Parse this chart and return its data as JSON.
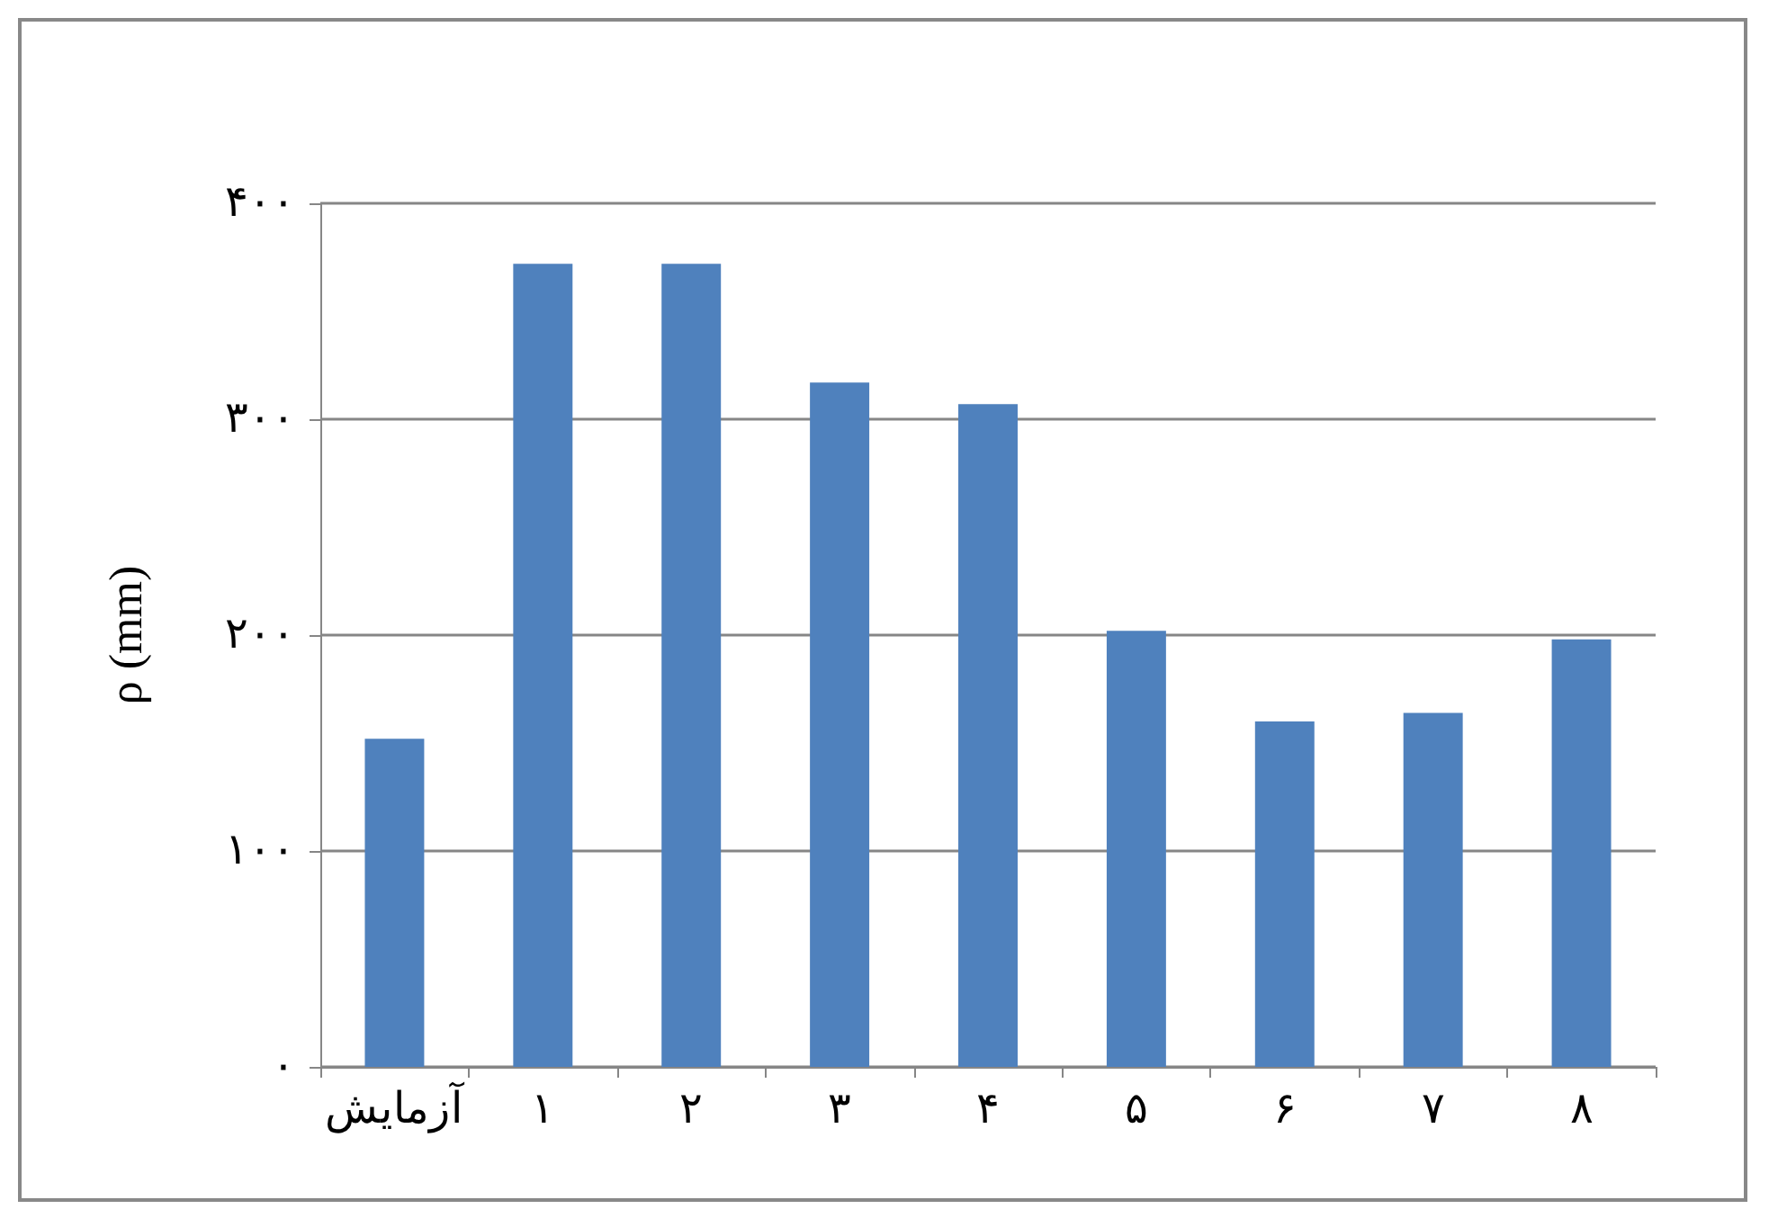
{
  "chart_data": {
    "type": "bar",
    "ylabel": "ρ (mm)",
    "categories": [
      "آزمایش",
      "۱",
      "۲",
      "۳",
      "۴",
      "۵",
      "۶",
      "۷",
      "۸"
    ],
    "values": [
      152,
      372,
      372,
      317,
      307,
      202,
      160,
      164,
      198
    ],
    "color": "#4f81bd",
    "ylim": [
      0,
      400
    ],
    "yticks": [
      {
        "value": 0,
        "label": "۰"
      },
      {
        "value": 100,
        "label": "۱۰۰"
      },
      {
        "value": 200,
        "label": "۲۰۰"
      },
      {
        "value": 300,
        "label": "۳۰۰"
      },
      {
        "value": 400,
        "label": "۴۰۰"
      }
    ],
    "grid": "y"
  }
}
